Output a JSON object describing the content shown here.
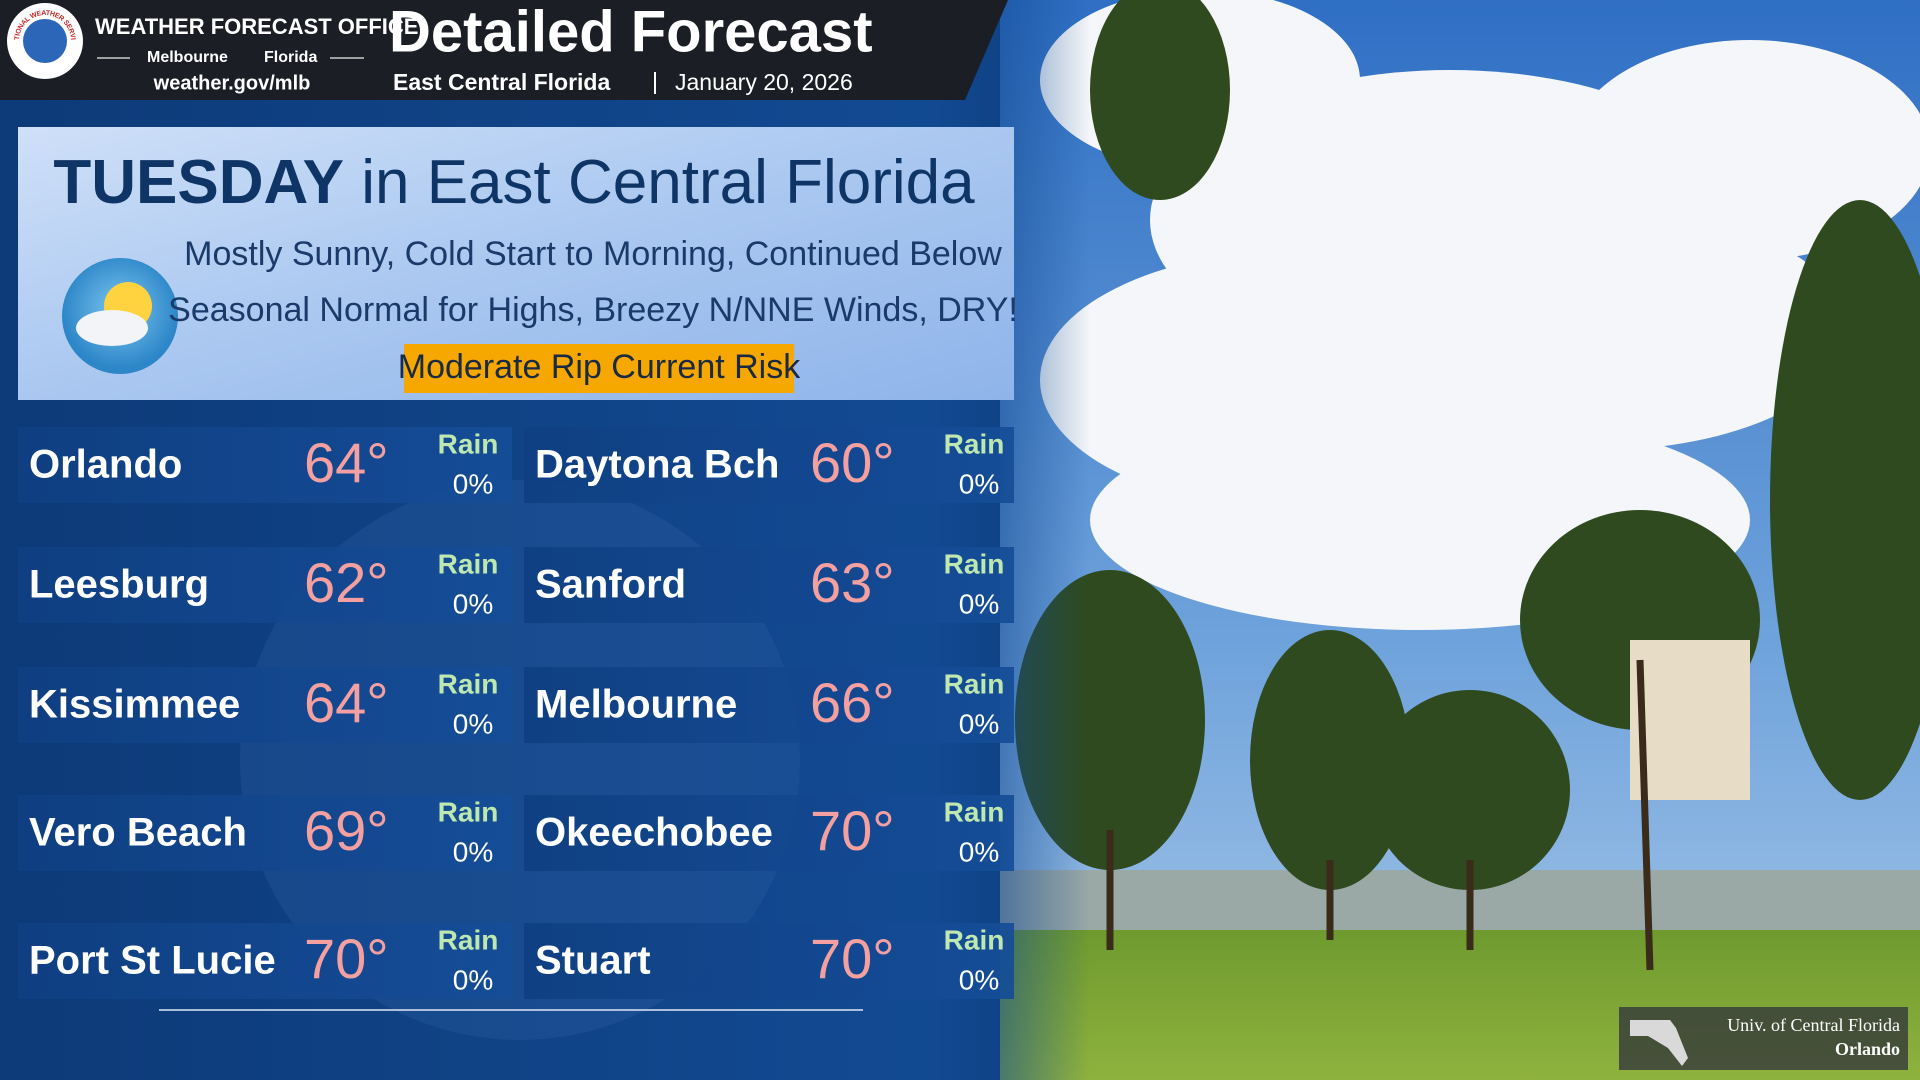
{
  "header": {
    "logo_text": "NATIONAL WEATHER SERVICE",
    "office": "WEATHER FORECAST OFFICE",
    "city": "Melbourne",
    "state": "Florida",
    "url": "weather.gov/mlb",
    "title": "Detailed Forecast",
    "region": "East Central Florida",
    "date": "January 20, 2026"
  },
  "banner": {
    "day": "TUESDAY",
    "day_rest": "in East Central Florida",
    "summary_line1": "Mostly Sunny, Cold Start to Morning, Continued Below",
    "summary_line2": "Seasonal Normal for Highs, Breezy N/NNE Winds, DRY!",
    "risk": "Moderate Rip Current Risk"
  },
  "cities": [
    {
      "name": "Orlando",
      "temp": "64°",
      "rain_label": "Rain",
      "rain": "0%"
    },
    {
      "name": "Daytona Bch",
      "temp": "60°",
      "rain_label": "Rain",
      "rain": "0%"
    },
    {
      "name": "Leesburg",
      "temp": "62°",
      "rain_label": "Rain",
      "rain": "0%"
    },
    {
      "name": "Sanford",
      "temp": "63°",
      "rain_label": "Rain",
      "rain": "0%"
    },
    {
      "name": "Kissimmee",
      "temp": "64°",
      "rain_label": "Rain",
      "rain": "0%"
    },
    {
      "name": "Melbourne",
      "temp": "66°",
      "rain_label": "Rain",
      "rain": "0%"
    },
    {
      "name": "Vero Beach",
      "temp": "69°",
      "rain_label": "Rain",
      "rain": "0%"
    },
    {
      "name": "Okeechobee",
      "temp": "70°",
      "rain_label": "Rain",
      "rain": "0%"
    },
    {
      "name": "Port St Lucie",
      "temp": "70°",
      "rain_label": "Rain",
      "rain": "0%"
    },
    {
      "name": "Stuart",
      "temp": "70°",
      "rain_label": "Rain",
      "rain": "0%"
    }
  ],
  "photo_credit": {
    "line1": "Univ. of Central Florida",
    "line2": "Orlando"
  }
}
